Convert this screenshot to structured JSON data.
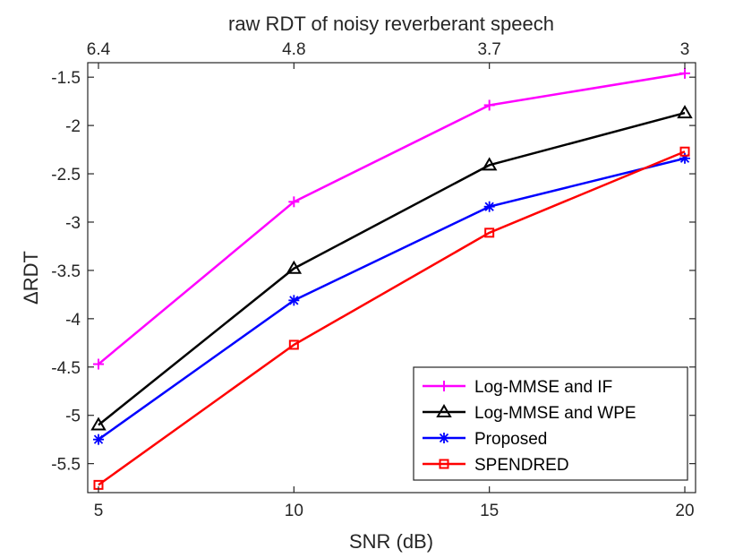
{
  "chart_data": {
    "type": "line",
    "xlabel": "SNR (dB)",
    "ylabel": "RDT",
    "ylabel_prefix": "Δ",
    "top_xlabel": "raw RDT of noisy reverberant speech",
    "x": [
      5,
      10,
      15,
      20
    ],
    "xlim": [
      5,
      20
    ],
    "ylim": [
      -5.8,
      -1.35
    ],
    "xticks": [
      5,
      10,
      15,
      20
    ],
    "xtick_labels": [
      "5",
      "10",
      "15",
      "20"
    ],
    "yticks": [
      -5.5,
      -5,
      -4.5,
      -4,
      -3.5,
      -3,
      -2.5,
      -2,
      -1.5
    ],
    "ytick_labels": [
      "-5.5",
      "-5",
      "-4.5",
      "-4",
      "-3.5",
      "-3",
      "-2.5",
      "-2",
      "-1.5"
    ],
    "top_xticks": [
      5,
      10,
      15,
      20
    ],
    "top_xtick_labels": [
      "6.4",
      "4.8",
      "3.7",
      "3"
    ],
    "legend_position": "bottom-right",
    "series": [
      {
        "name": "Log-MMSE and IF",
        "color": "#ff00ff",
        "marker": "plus",
        "values": [
          -4.47,
          -2.79,
          -1.79,
          -1.46
        ]
      },
      {
        "name": "Log-MMSE and WPE",
        "color": "#000000",
        "marker": "triangle",
        "values": [
          -5.1,
          -3.48,
          -2.41,
          -1.87
        ]
      },
      {
        "name": "Proposed",
        "color": "#0000ff",
        "marker": "asterisk",
        "values": [
          -5.25,
          -3.81,
          -2.84,
          -2.34
        ]
      },
      {
        "name": "SPENDRED",
        "color": "#ff0000",
        "marker": "square",
        "values": [
          -5.72,
          -4.27,
          -3.11,
          -2.27
        ]
      }
    ]
  }
}
